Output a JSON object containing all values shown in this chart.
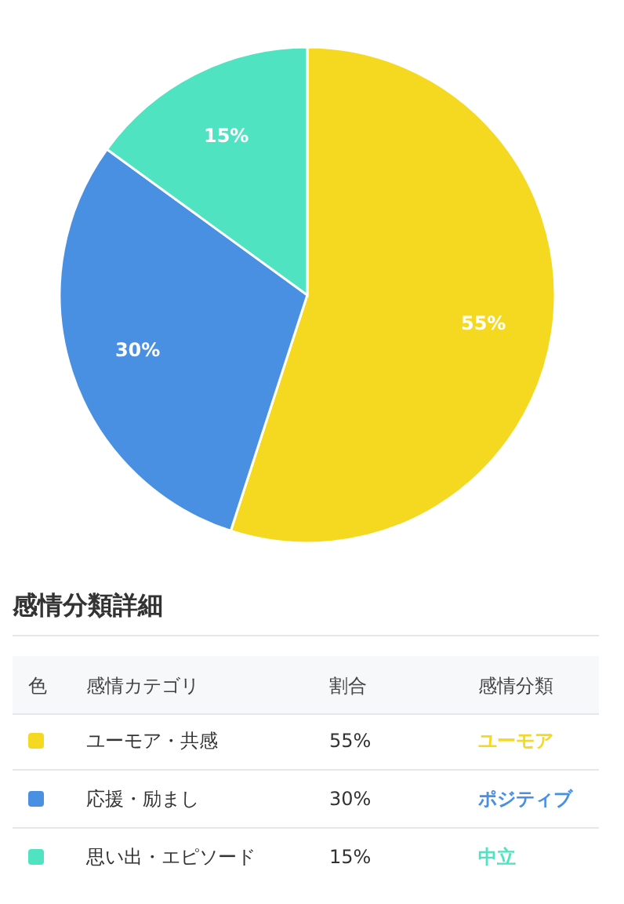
{
  "chart_data": {
    "type": "pie",
    "categories": [
      "ユーモア・共感",
      "応援・励まし",
      "思い出・エピソード"
    ],
    "values": [
      55,
      30,
      15
    ],
    "colors": [
      "#f5d820",
      "#4a90e2",
      "#50e3c2"
    ],
    "value_labels": [
      "55%",
      "30%",
      "15%"
    ],
    "legend": "bottom",
    "annotations": [
      "感情分類詳細",
      "色",
      "感情カテゴリ",
      "割合",
      "感情分類",
      "ユーモア",
      "ポジティブ",
      "中立"
    ]
  }
}
